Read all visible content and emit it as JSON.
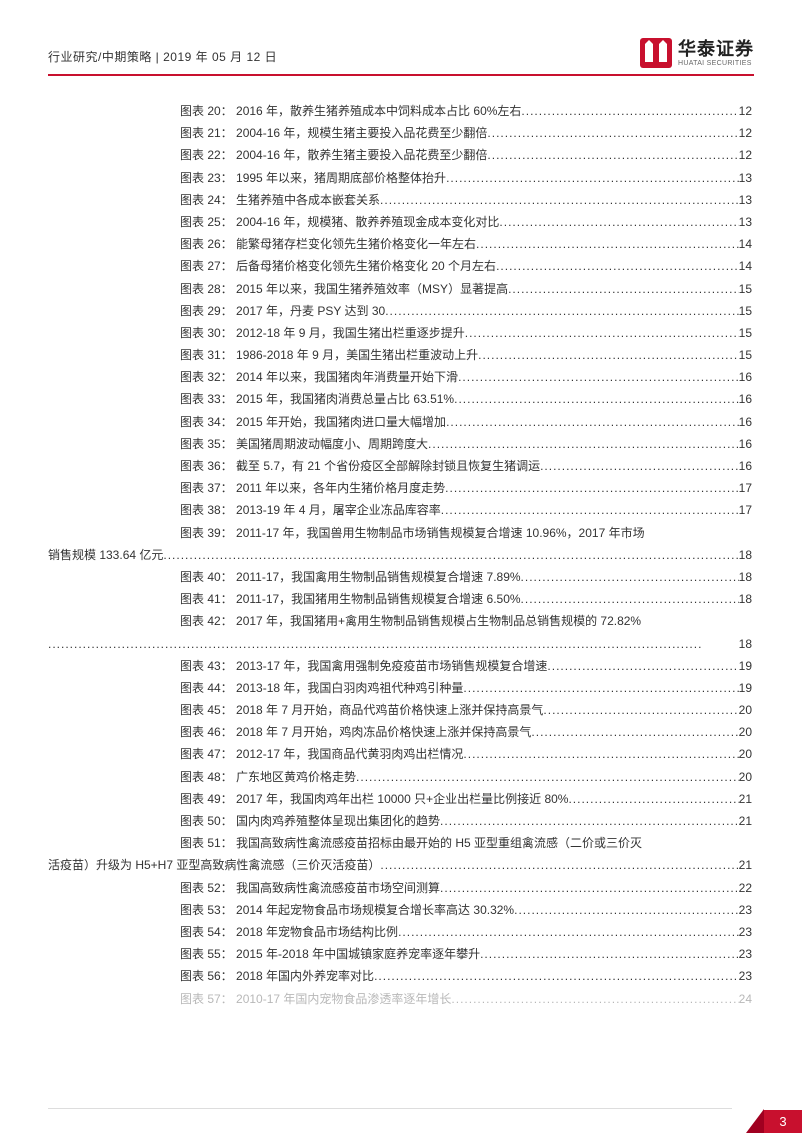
{
  "header": {
    "left": "行业研究/中期策略 | 2019 年 05 月 12 日",
    "logo_cn": "华泰证券",
    "logo_en": "HUATAI SECURITIES",
    "logo_color": "#c8102e"
  },
  "toc": [
    {
      "n": "20",
      "t": "2016 年，散养生猪养殖成本中饲料成本占比 60%左右",
      "p": "12"
    },
    {
      "n": "21",
      "t": "2004-16 年，规模生猪主要投入品花费至少翻倍",
      "p": "12"
    },
    {
      "n": "22",
      "t": "2004-16 年，散养生猪主要投入品花费至少翻倍",
      "p": "12"
    },
    {
      "n": "23",
      "t": "1995 年以来，猪周期底部价格整体抬升",
      "p": "13"
    },
    {
      "n": "24",
      "t": "生猪养殖中各成本嵌套关系",
      "p": "13"
    },
    {
      "n": "25",
      "t": "2004-16 年，规模猪、散养养殖现金成本变化对比",
      "p": "13"
    },
    {
      "n": "26",
      "t": "能繁母猪存栏变化领先生猪价格变化一年左右",
      "p": "14"
    },
    {
      "n": "27",
      "t": "后备母猪价格变化领先生猪价格变化 20 个月左右",
      "p": "14"
    },
    {
      "n": "28",
      "t": "2015 年以来，我国生猪养殖效率（MSY）显著提高",
      "p": "15"
    },
    {
      "n": "29",
      "t": "2017 年，丹麦 PSY 达到 30",
      "p": "15"
    },
    {
      "n": "30",
      "t": "2012-18 年 9 月，我国生猪出栏重逐步提升",
      "p": "15"
    },
    {
      "n": "31",
      "t": "1986-2018 年 9 月，美国生猪出栏重波动上升",
      "p": "15"
    },
    {
      "n": "32",
      "t": "2014 年以来，我国猪肉年消费量开始下滑",
      "p": "16"
    },
    {
      "n": "33",
      "t": "2015 年，我国猪肉消费总量占比 63.51%",
      "p": "16"
    },
    {
      "n": "34",
      "t": "2015 年开始，我国猪肉进口量大幅增加",
      "p": "16"
    },
    {
      "n": "35",
      "t": "美国猪周期波动幅度小、周期跨度大",
      "p": "16"
    },
    {
      "n": "36",
      "t": "截至 5.7，有 21 个省份疫区全部解除封锁且恢复生猪调运",
      "p": "16"
    },
    {
      "n": "37",
      "t": "2011 年以来，各年内生猪价格月度走势",
      "p": "17"
    },
    {
      "n": "38",
      "t": "2013-19 年 4 月，屠宰企业冻品库容率",
      "p": "17"
    },
    {
      "n": "39",
      "t": "2011-17 年，我国兽用生物制品市场销售规模复合增速 10.96%，2017 年市场",
      "t2": "销售规模 133.64 亿元",
      "p": "18",
      "wrap": true
    },
    {
      "n": "40",
      "t": "2011-17，我国禽用生物制品销售规模复合增速 7.89%",
      "p": "18"
    },
    {
      "n": "41",
      "t": "2011-17，我国猪用生物制品销售规模复合增速 6.50%",
      "p": "18"
    },
    {
      "n": "42",
      "t": "2017 年，我国猪用+禽用生物制品销售规模占生物制品总销售规模的 72.82%",
      "t2": "",
      "p": "18",
      "wrap": true
    },
    {
      "n": "43",
      "t": "2013-17 年，我国禽用强制免疫疫苗市场销售规模复合增速",
      "p": "19"
    },
    {
      "n": "44",
      "t": "2013-18 年，我国白羽肉鸡祖代种鸡引种量",
      "p": "19"
    },
    {
      "n": "45",
      "t": "2018 年 7 月开始，商品代鸡苗价格快速上涨并保持高景气",
      "p": "20"
    },
    {
      "n": "46",
      "t": "2018 年 7 月开始，鸡肉冻品价格快速上涨并保持高景气",
      "p": "20"
    },
    {
      "n": "47",
      "t": "2012-17 年，我国商品代黄羽肉鸡出栏情况",
      "p": "20"
    },
    {
      "n": "48",
      "t": "广东地区黄鸡价格走势",
      "p": "20"
    },
    {
      "n": "49",
      "t": "2017 年，我国肉鸡年出栏 10000 只+企业出栏量比例接近 80%",
      "p": "21"
    },
    {
      "n": "50",
      "t": "国内肉鸡养殖整体呈现出集团化的趋势",
      "p": "21"
    },
    {
      "n": "51",
      "t": "我国高致病性禽流感疫苗招标由最开始的 H5 亚型重组禽流感（二价或三价灭",
      "t2": "活疫苗）升级为 H5+H7 亚型高致病性禽流感（三价灭活疫苗）",
      "p": "21",
      "wrap": true
    },
    {
      "n": "52",
      "t": "我国高致病性禽流感疫苗市场空间测算",
      "p": "22"
    },
    {
      "n": "53",
      "t": "2014 年起宠物食品市场规模复合增长率高达 30.32%",
      "p": "23"
    },
    {
      "n": "54",
      "t": "2018 年宠物食品市场结构比例",
      "p": "23"
    },
    {
      "n": "55",
      "t": "2015 年-2018 年中国城镇家庭养宠率逐年攀升",
      "p": "23"
    },
    {
      "n": "56",
      "t": "2018 年国内外养宠率对比",
      "p": "23"
    },
    {
      "n": "57",
      "t": "2010-17 年国内宠物食品渗透率逐年增长",
      "p": "24",
      "faded": true
    }
  ],
  "footer": {
    "page": "3"
  },
  "colors": {
    "accent": "#c8102e",
    "accent_dark": "#a00020",
    "text": "#333333"
  }
}
